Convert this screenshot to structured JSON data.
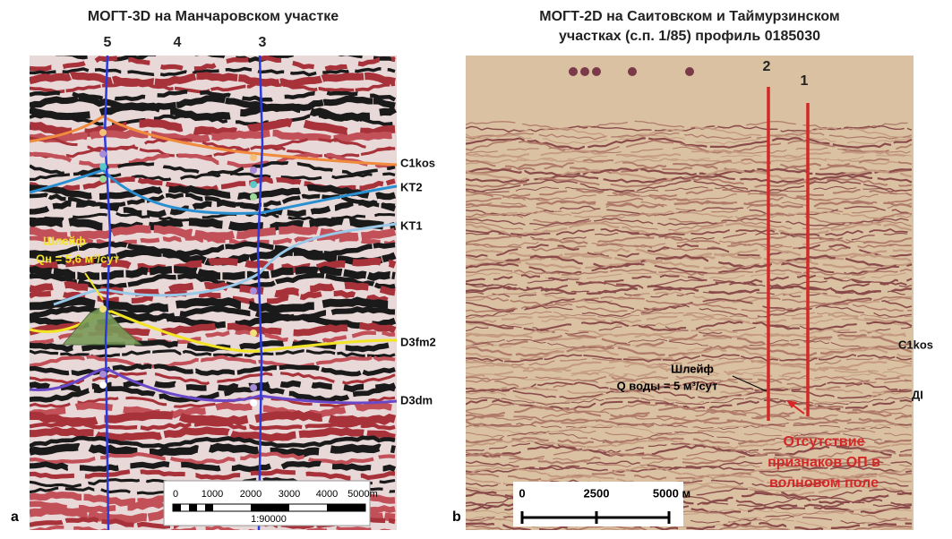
{
  "left": {
    "title": "МОГТ-3D на Манчаровском участке",
    "wells": [
      "5",
      "4",
      "3"
    ],
    "horizons": [
      "C1kos",
      "KT2",
      "KT1",
      "D3fm2",
      "D3dm"
    ],
    "annotation": [
      "Шлейф",
      "Qн = 5,6 м³/сут"
    ],
    "scale": {
      "ticks": [
        "0",
        "1000",
        "2000",
        "3000",
        "4000",
        "5000m"
      ],
      "ratio": "1:90000"
    },
    "letter": "a"
  },
  "right": {
    "title": [
      "МОГТ-2D на Саитовском и Таймурзинском",
      "участках (с.п. 1/85) профиль 0185030"
    ],
    "wells": [
      "2",
      "1"
    ],
    "horizons": [
      "C1kos",
      "ДI"
    ],
    "annotation": [
      "Шлейф",
      "Q воды = 5 м³/сут"
    ],
    "note": [
      "Отсутствие",
      "признаков ОП в",
      "волновом поле"
    ],
    "scale": {
      "ticks": [
        "0",
        "2500",
        "5000 м"
      ]
    },
    "letter": "b"
  }
}
